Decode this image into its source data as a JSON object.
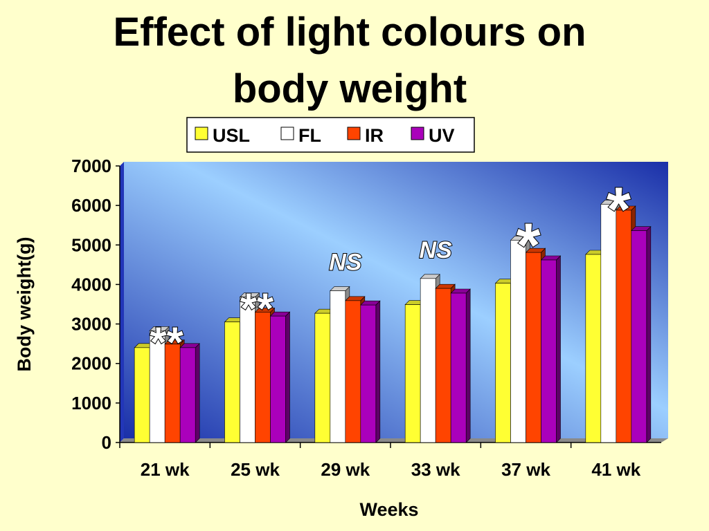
{
  "chart_data": {
    "type": "bar",
    "title_lines": [
      "Effect of light colours on",
      "body weight"
    ],
    "xlabel": "Weeks",
    "ylabel": "Body weight(g)",
    "categories": [
      "21 wk",
      "25 wk",
      "29 wk",
      "33 wk",
      "37 wk",
      "41 wk"
    ],
    "ylim": [
      0,
      7000
    ],
    "yticks": [
      "0",
      "1000",
      "2000",
      "3000",
      "4000",
      "5000",
      "6000",
      "7000"
    ],
    "legend_position": "top",
    "series": [
      {
        "name": "USL",
        "color": "#FFFF33",
        "values": [
          2400,
          3050,
          3270,
          3490,
          4030,
          4760
        ]
      },
      {
        "name": "FL",
        "color": "#FFFFFF",
        "values": [
          2830,
          3680,
          3840,
          4150,
          5120,
          6030
        ]
      },
      {
        "name": "IR",
        "color": "#FF4400",
        "values": [
          2490,
          3300,
          3590,
          3900,
          4810,
          5880
        ]
      },
      {
        "name": "UV",
        "color": "#AA00BB",
        "values": [
          2400,
          3200,
          3480,
          3780,
          4620,
          5360
        ]
      }
    ],
    "annotations": [
      "**",
      "**",
      "NS",
      "NS",
      "*",
      "*"
    ],
    "plot_background": [
      "#1A2FA8",
      "#9CCFFF"
    ],
    "grid": false
  }
}
